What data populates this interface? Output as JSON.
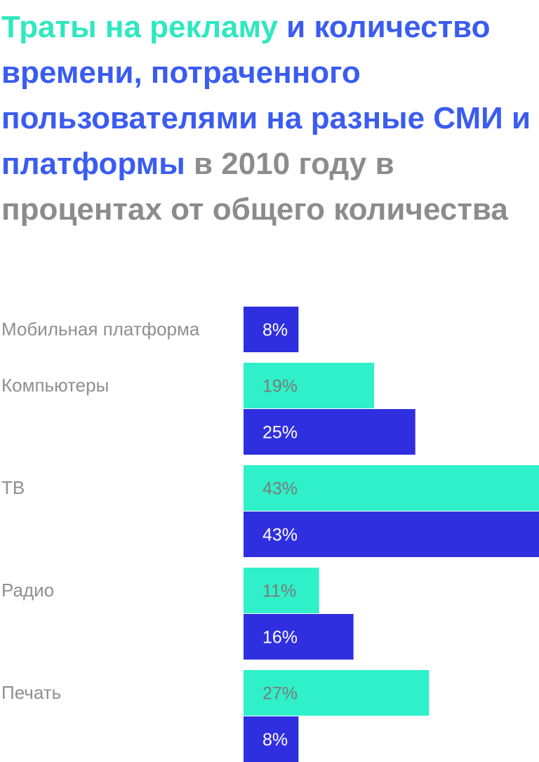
{
  "title": {
    "part1": "Траты на рекламу",
    "part2": "и количество времени, потраченного пользователями на разные СМИ и платформы",
    "part3": "в 2010 году в процентах от общего количества"
  },
  "colors": {
    "ad_spend": "#2ff0c8",
    "time_spent": "#2f2fe0",
    "title_green": "#2fe8c0",
    "title_blue": "#3a5cf0",
    "title_gray": "#8c8c8c"
  },
  "chart_data": {
    "type": "bar",
    "orientation": "horizontal",
    "categories": [
      "Мобильная платформа",
      "Компьютеры",
      "ТВ",
      "Радио",
      "Печать"
    ],
    "series": [
      {
        "values": [
          null,
          19,
          43,
          11,
          27
        ],
        "color": "#2ff0c8"
      },
      {
        "values": [
          8,
          25,
          43,
          16,
          8
        ],
        "color": "#2f2fe0"
      }
    ],
    "value_labels": [
      [
        "",
        "19%",
        "43%",
        "11%",
        "27%"
      ],
      [
        "8%",
        "25%",
        "43%",
        "16%",
        "8%"
      ]
    ],
    "xlim": [
      0,
      43
    ],
    "grid": false,
    "legend": "none"
  }
}
